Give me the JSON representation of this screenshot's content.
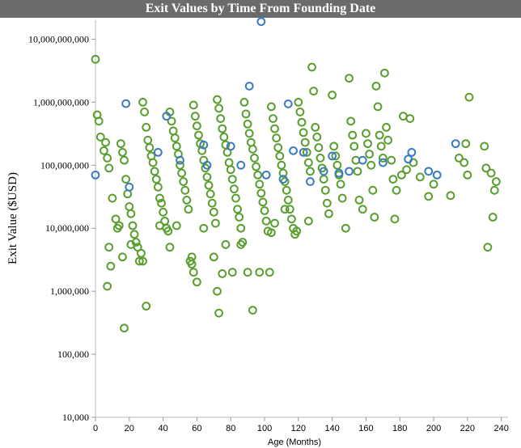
{
  "chart_data": {
    "type": "scatter",
    "title": "Exit Values by Time From Founding Date",
    "xlabel": "Age (Months)",
    "ylabel": "Exit Value ($USD)",
    "x_ticks": [
      "0",
      "20",
      "40",
      "60",
      "80",
      "100",
      "120",
      "140",
      "160",
      "180",
      "200",
      "220",
      "240"
    ],
    "y_ticks": [
      "10,000",
      "100,000",
      "1,000,000",
      "10,000,000",
      "100,000,000",
      "1,000,000,000",
      "10,000,000,000"
    ],
    "xlim": [
      0,
      244
    ],
    "ylim": [
      10000,
      20000000000
    ],
    "y_scale": "log",
    "grid": false,
    "legend": "none",
    "colors": {
      "green": "#5a9e2f",
      "blue": "#3b7bbf",
      "title_bar": "#6b6b6b"
    },
    "series": [
      {
        "color": "green",
        "points": [
          [
            0,
            4800000000
          ],
          [
            1,
            630000000
          ],
          [
            2,
            500000000
          ],
          [
            3,
            280000000
          ],
          [
            5,
            170000000
          ],
          [
            6,
            230000000
          ],
          [
            7,
            130000000
          ],
          [
            8,
            90000000
          ],
          [
            10,
            30000000
          ],
          [
            12,
            14000000
          ],
          [
            13,
            10000000
          ],
          [
            15,
            220000000
          ],
          [
            16,
            160000000
          ],
          [
            17,
            120000000
          ],
          [
            18,
            60000000
          ],
          [
            19,
            35000000
          ],
          [
            20,
            22000000
          ],
          [
            21,
            17000000
          ],
          [
            22,
            11000000
          ],
          [
            23,
            8000000
          ],
          [
            24,
            6000000
          ],
          [
            25,
            5000000
          ],
          [
            26,
            3000000
          ],
          [
            27,
            4000000
          ],
          [
            28,
            1000000000
          ],
          [
            29,
            700000000
          ],
          [
            30,
            400000000
          ],
          [
            31,
            250000000
          ],
          [
            32,
            190000000
          ],
          [
            33,
            140000000
          ],
          [
            34,
            110000000
          ],
          [
            35,
            80000000
          ],
          [
            36,
            60000000
          ],
          [
            37,
            45000000
          ],
          [
            38,
            30000000
          ],
          [
            39,
            25000000
          ],
          [
            40,
            18000000
          ],
          [
            41,
            13000000
          ],
          [
            42,
            10000000
          ],
          [
            43,
            9000000
          ],
          [
            44,
            700000000
          ],
          [
            45,
            500000000
          ],
          [
            46,
            350000000
          ],
          [
            47,
            270000000
          ],
          [
            48,
            200000000
          ],
          [
            49,
            150000000
          ],
          [
            50,
            100000000
          ],
          [
            51,
            75000000
          ],
          [
            52,
            55000000
          ],
          [
            53,
            40000000
          ],
          [
            54,
            28000000
          ],
          [
            55,
            20000000
          ],
          [
            56,
            3000000
          ],
          [
            57,
            2700000
          ],
          [
            58,
            900000000
          ],
          [
            59,
            600000000
          ],
          [
            60,
            420000000
          ],
          [
            61,
            300000000
          ],
          [
            62,
            220000000
          ],
          [
            63,
            170000000
          ],
          [
            64,
            120000000
          ],
          [
            65,
            90000000
          ],
          [
            66,
            65000000
          ],
          [
            67,
            48000000
          ],
          [
            68,
            35000000
          ],
          [
            69,
            25000000
          ],
          [
            70,
            18000000
          ],
          [
            71,
            12000000
          ],
          [
            72,
            1100000000
          ],
          [
            73,
            800000000
          ],
          [
            74,
            550000000
          ],
          [
            75,
            380000000
          ],
          [
            76,
            280000000
          ],
          [
            77,
            210000000
          ],
          [
            78,
            160000000
          ],
          [
            79,
            110000000
          ],
          [
            80,
            85000000
          ],
          [
            81,
            60000000
          ],
          [
            82,
            42000000
          ],
          [
            83,
            30000000
          ],
          [
            84,
            20000000
          ],
          [
            85,
            15000000
          ],
          [
            86,
            10000000
          ],
          [
            87,
            6000000
          ],
          [
            88,
            1000000000
          ],
          [
            89,
            650000000
          ],
          [
            90,
            450000000
          ],
          [
            91,
            320000000
          ],
          [
            92,
            230000000
          ],
          [
            93,
            180000000
          ],
          [
            94,
            130000000
          ],
          [
            95,
            95000000
          ],
          [
            96,
            70000000
          ],
          [
            97,
            50000000
          ],
          [
            98,
            36000000
          ],
          [
            99,
            26000000
          ],
          [
            100,
            19000000
          ],
          [
            101,
            13000000
          ],
          [
            102,
            9000000
          ],
          [
            103,
            2000000
          ],
          [
            104,
            850000000
          ],
          [
            105,
            550000000
          ],
          [
            106,
            380000000
          ],
          [
            107,
            270000000
          ],
          [
            108,
            190000000
          ],
          [
            109,
            140000000
          ],
          [
            110,
            100000000
          ],
          [
            111,
            75000000
          ],
          [
            112,
            55000000
          ],
          [
            113,
            40000000
          ],
          [
            114,
            28000000
          ],
          [
            115,
            20000000
          ],
          [
            116,
            14000000
          ],
          [
            117,
            10000000
          ],
          [
            118,
            8000000
          ],
          [
            120,
            1000000000
          ],
          [
            121,
            700000000
          ],
          [
            122,
            480000000
          ],
          [
            123,
            330000000
          ],
          [
            124,
            230000000
          ],
          [
            125,
            160000000
          ],
          [
            126,
            110000000
          ],
          [
            127,
            80000000
          ],
          [
            128,
            3600000000
          ],
          [
            129,
            1500000000
          ],
          [
            130,
            400000000
          ],
          [
            131,
            280000000
          ],
          [
            132,
            190000000
          ],
          [
            133,
            130000000
          ],
          [
            134,
            90000000
          ],
          [
            135,
            60000000
          ],
          [
            136,
            40000000
          ],
          [
            137,
            25000000
          ],
          [
            138,
            17000000
          ],
          [
            140,
            1300000000
          ],
          [
            141,
            200000000
          ],
          [
            142,
            140000000
          ],
          [
            143,
            100000000
          ],
          [
            144,
            70000000
          ],
          [
            145,
            50000000
          ],
          [
            146,
            30000000
          ],
          [
            148,
            10000000
          ],
          [
            150,
            2400000000
          ],
          [
            151,
            500000000
          ],
          [
            152,
            300000000
          ],
          [
            153,
            200000000
          ],
          [
            154,
            120000000
          ],
          [
            155,
            80000000
          ],
          [
            156,
            28000000
          ],
          [
            158,
            20000000
          ],
          [
            160,
            320000000
          ],
          [
            161,
            220000000
          ],
          [
            162,
            150000000
          ],
          [
            163,
            100000000
          ],
          [
            164,
            40000000
          ],
          [
            165,
            15000000
          ],
          [
            166,
            1800000000
          ],
          [
            167,
            850000000
          ],
          [
            168,
            300000000
          ],
          [
            169,
            200000000
          ],
          [
            170,
            130000000
          ],
          [
            171,
            2900000000
          ],
          [
            172,
            400000000
          ],
          [
            173,
            250000000
          ],
          [
            175,
            120000000
          ],
          [
            176,
            60000000
          ],
          [
            177,
            14000000
          ],
          [
            178,
            40000000
          ],
          [
            181,
            70000000
          ],
          [
            182,
            600000000
          ],
          [
            184,
            85000000
          ],
          [
            186,
            550000000
          ],
          [
            188,
            110000000
          ],
          [
            192,
            65000000
          ],
          [
            197,
            32000000
          ],
          [
            200,
            50000000
          ],
          [
            210,
            33000000
          ],
          [
            215,
            130000000
          ],
          [
            218,
            110000000
          ],
          [
            219,
            220000000
          ],
          [
            220,
            70000000
          ],
          [
            221,
            1200000000
          ],
          [
            230,
            200000000
          ],
          [
            231,
            90000000
          ],
          [
            232,
            5000000
          ],
          [
            234,
            75000000
          ],
          [
            235,
            15000000
          ],
          [
            236,
            40000000
          ],
          [
            237,
            55000000
          ],
          [
            8,
            5000000
          ],
          [
            9,
            2500000
          ],
          [
            7,
            1200000
          ],
          [
            14,
            11000000
          ],
          [
            16,
            3500000
          ],
          [
            17,
            260000
          ],
          [
            21,
            5500000
          ],
          [
            28,
            3000000
          ],
          [
            30,
            580000
          ],
          [
            38,
            11000000
          ],
          [
            44,
            5000000
          ],
          [
            48,
            11000000
          ],
          [
            57,
            3500000
          ],
          [
            58,
            2000000
          ],
          [
            60,
            1400000
          ],
          [
            64,
            10000000
          ],
          [
            70,
            3500000
          ],
          [
            72,
            1000000
          ],
          [
            73,
            450000
          ],
          [
            75,
            1900000
          ],
          [
            77,
            5500000
          ],
          [
            81,
            2000000
          ],
          [
            86,
            5500000
          ],
          [
            90,
            2000000
          ],
          [
            93,
            500000
          ],
          [
            97,
            2000000
          ],
          [
            104,
            8500000
          ],
          [
            106,
            12000000
          ],
          [
            112,
            20000000
          ],
          [
            119,
            9000000
          ],
          [
            126,
            13000000
          ]
        ]
      },
      {
        "color": "blue",
        "points": [
          [
            0,
            70000000
          ],
          [
            18,
            950000000
          ],
          [
            20,
            45000000
          ],
          [
            37,
            160000000
          ],
          [
            42,
            600000000
          ],
          [
            50,
            120000000
          ],
          [
            64,
            210000000
          ],
          [
            66,
            100000000
          ],
          [
            80,
            200000000
          ],
          [
            86,
            100000000
          ],
          [
            91,
            1800000000
          ],
          [
            98,
            19000000000
          ],
          [
            101,
            70000000
          ],
          [
            111,
            60000000
          ],
          [
            114,
            940000000
          ],
          [
            117,
            170000000
          ],
          [
            123,
            160000000
          ],
          [
            127,
            55000000
          ],
          [
            135,
            80000000
          ],
          [
            140,
            140000000
          ],
          [
            144,
            75000000
          ],
          [
            150,
            80000000
          ],
          [
            158,
            120000000
          ],
          [
            170,
            110000000
          ],
          [
            185,
            125000000
          ],
          [
            187,
            160000000
          ],
          [
            197,
            80000000
          ],
          [
            202,
            70000000
          ],
          [
            213,
            220000000
          ]
        ]
      }
    ]
  }
}
